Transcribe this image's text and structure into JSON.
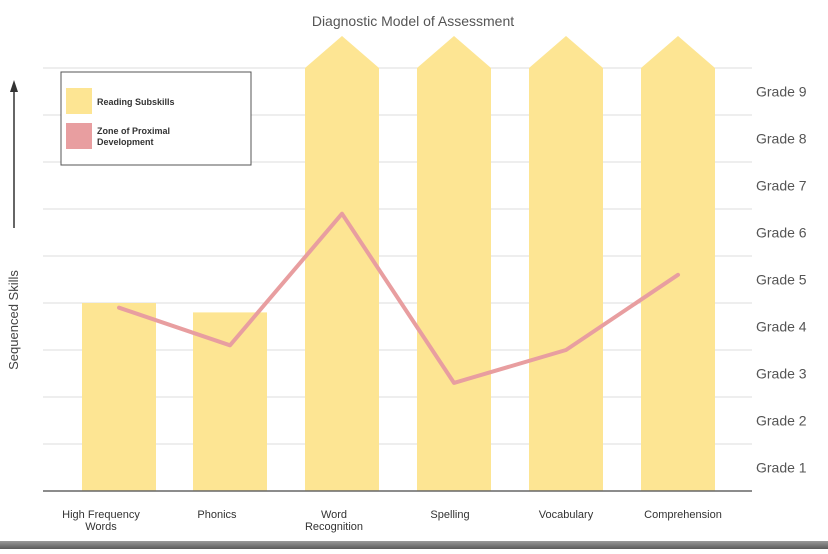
{
  "chart_data": {
    "type": "bar",
    "title": "Diagnostic Model of Assessment",
    "ylabel": "Sequenced Skills",
    "xlabel": "",
    "categories": [
      "High Frequency Words",
      "Phonics",
      "Word Recognition",
      "Spelling",
      "Vocabulary",
      "Comprehension"
    ],
    "category_lines": [
      [
        "High Frequency",
        "Words"
      ],
      [
        "Phonics"
      ],
      [
        "Word",
        "Recognition"
      ],
      [
        "Spelling"
      ],
      [
        "Vocabulary"
      ],
      [
        "Comprehension"
      ]
    ],
    "y_ticks": [
      "Grade 1",
      "Grade 2",
      "Grade 3",
      "Grade 4",
      "Grade 5",
      "Grade 6",
      "Grade 7",
      "Grade 8",
      "Grade 9"
    ],
    "ylim": [
      0,
      9
    ],
    "y_axis_side": "right",
    "grid": true,
    "series": [
      {
        "name": "Reading Subskills",
        "type": "bar",
        "color": "#fde593",
        "values": [
          4.0,
          3.8,
          9.0,
          9.0,
          9.0,
          9.0
        ],
        "continues_above": [
          false,
          false,
          true,
          true,
          true,
          true
        ]
      },
      {
        "name": "Zone of Proximal Development",
        "type": "line",
        "color": "#e89ea0",
        "values": [
          3.9,
          3.1,
          5.9,
          2.3,
          3.0,
          4.6
        ]
      }
    ],
    "legend": {
      "position": "top-left",
      "entries": [
        "Reading Subskills",
        "Zone of Proximal Development"
      ]
    }
  }
}
